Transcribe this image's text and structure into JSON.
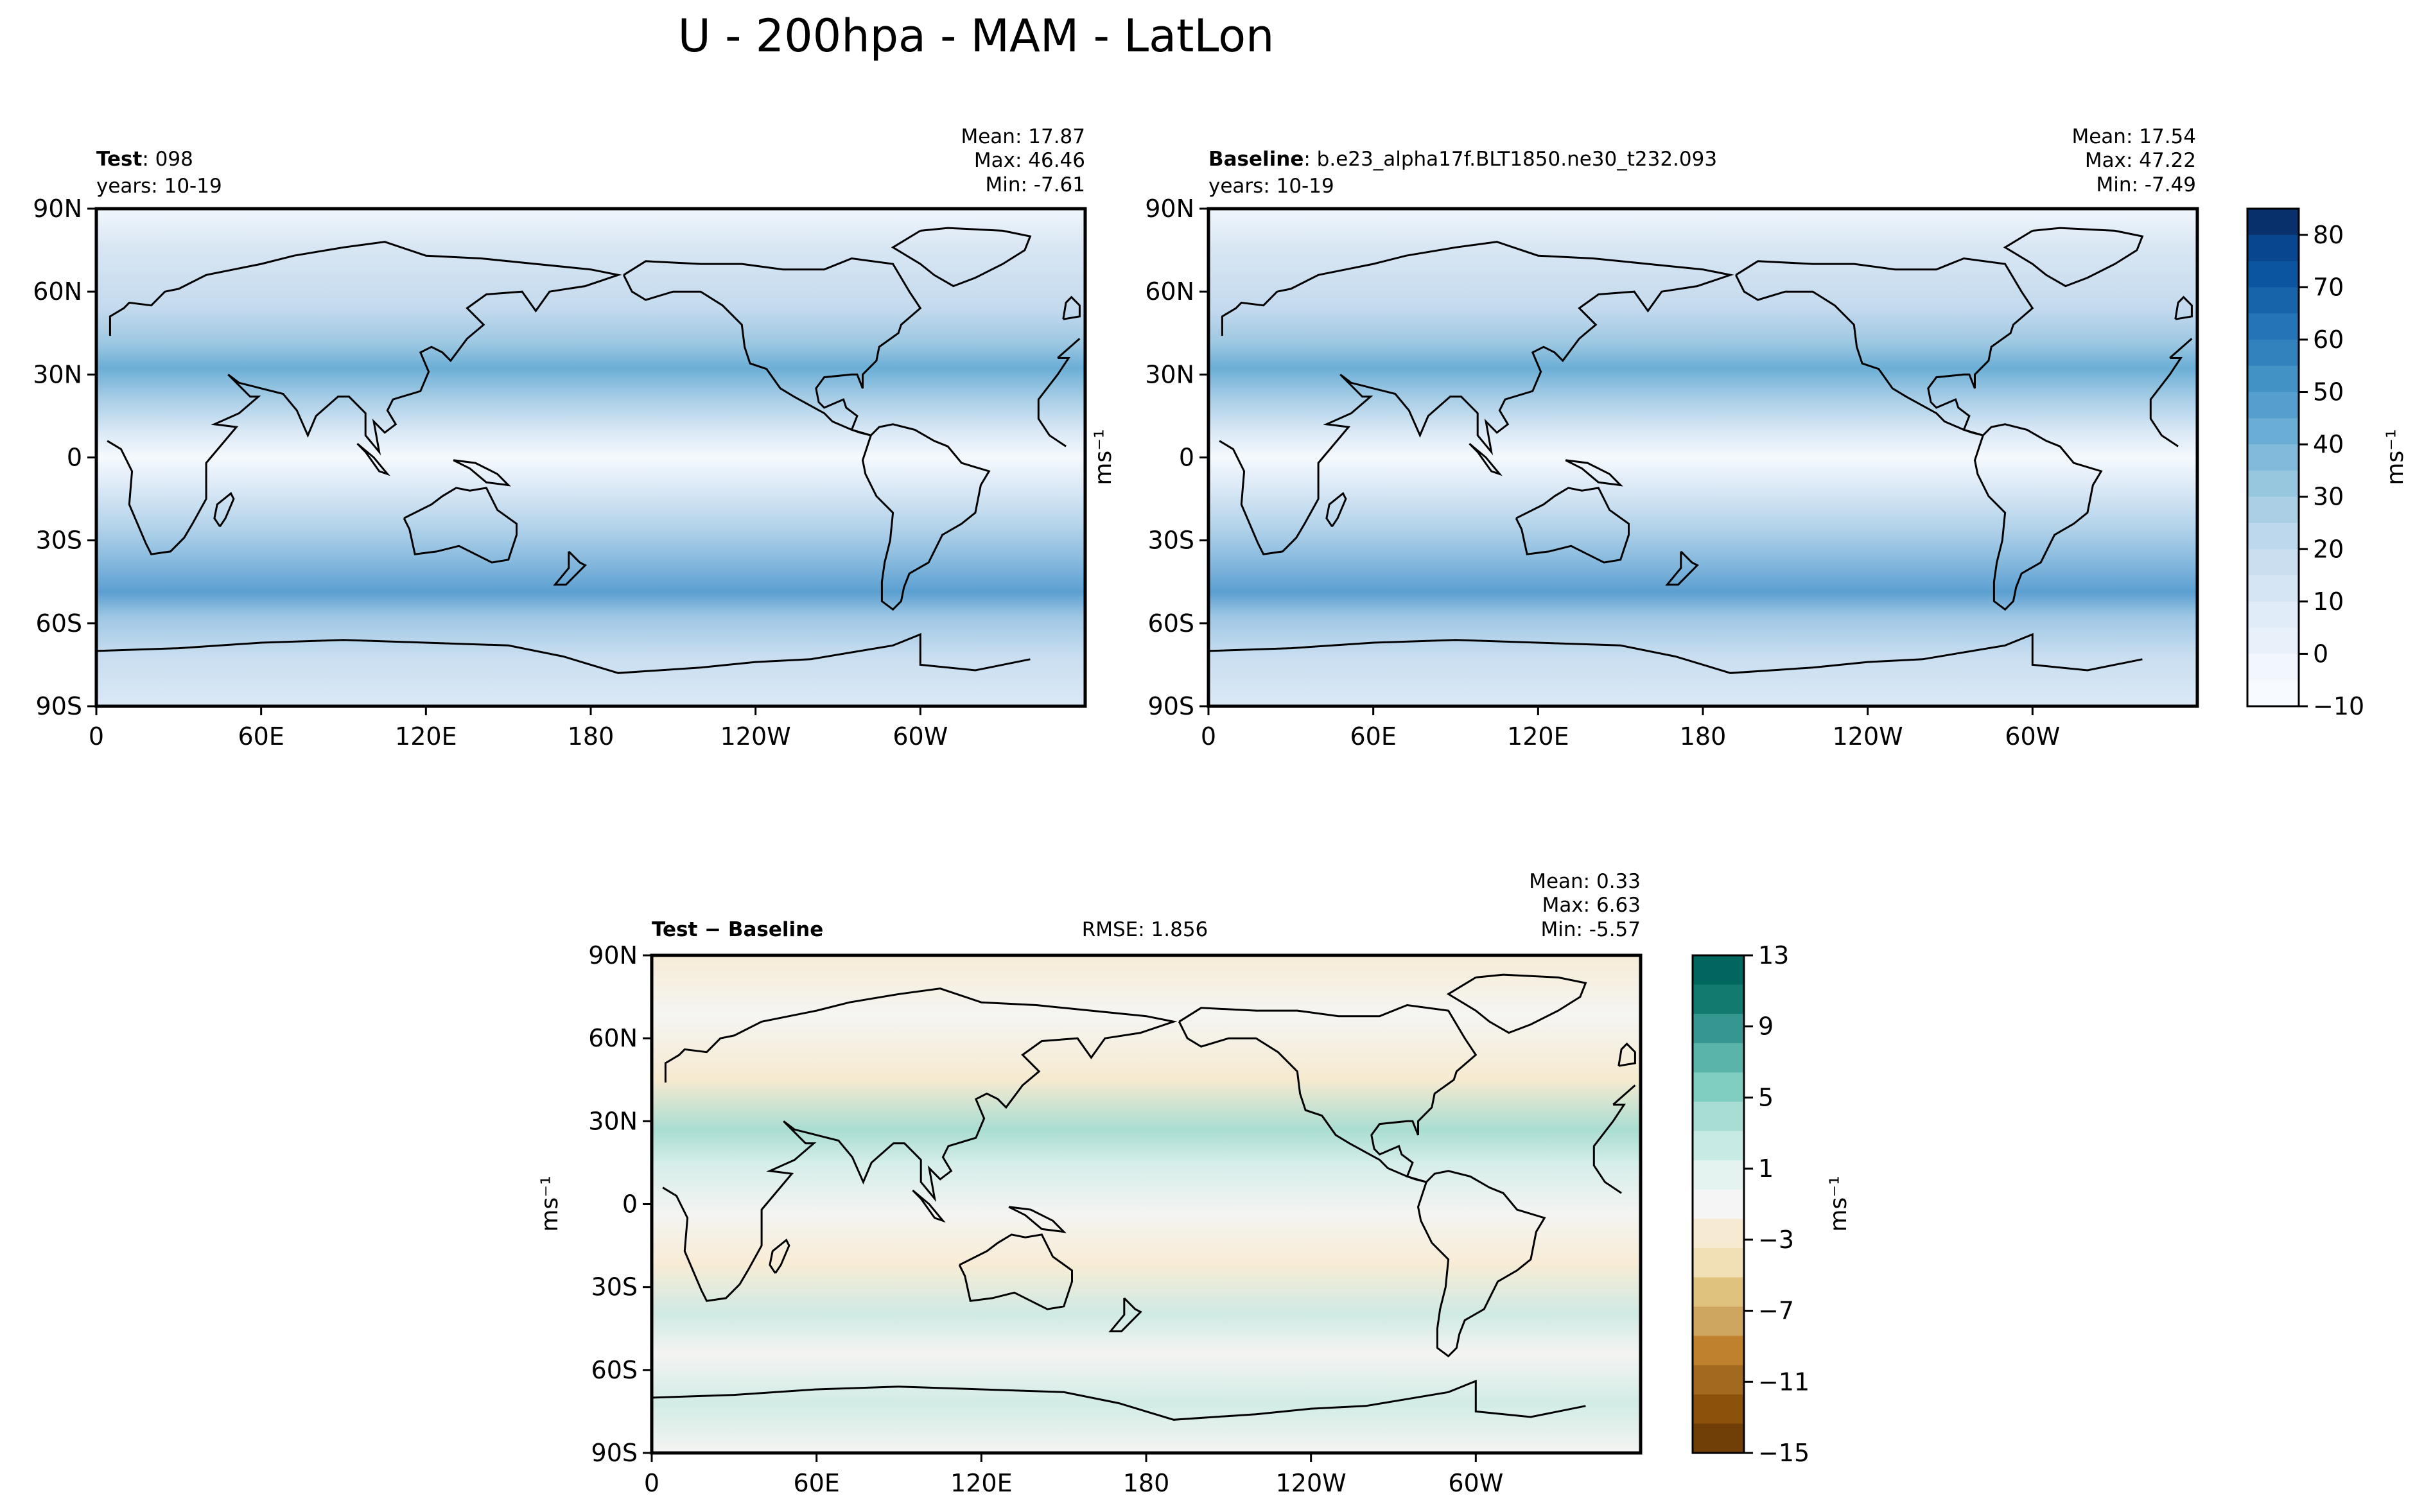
{
  "figure_title": "U - 200hpa - MAM - LatLon",
  "chart_data": [
    {
      "type": "heatmap",
      "panel": "test",
      "label_bold": "Test",
      "label_rest": ": 098",
      "years": "years: 10-19",
      "stats": [
        "Mean: 17.87",
        "Max: 46.46",
        "Min: -7.61"
      ],
      "x_ticks": [
        "0",
        "60E",
        "120E",
        "180",
        "120W",
        "60W"
      ],
      "y_ticks": [
        "90N",
        "60N",
        "30N",
        "0",
        "30S",
        "60S",
        "90S"
      ],
      "xlim": [
        0,
        360
      ],
      "ylim": [
        -90,
        90
      ],
      "units": "ms⁻¹",
      "colormap": "Blues",
      "zonal_mean_profile": {
        "lat": [
          90,
          75,
          60,
          50,
          40,
          30,
          20,
          10,
          0,
          -10,
          -20,
          -30,
          -40,
          -50,
          -60,
          -70,
          -80,
          -90
        ],
        "u": [
          5,
          8,
          14,
          20,
          26,
          32,
          24,
          8,
          -2,
          6,
          18,
          26,
          30,
          34,
          22,
          10,
          4,
          2
        ]
      }
    },
    {
      "type": "heatmap",
      "panel": "baseline",
      "label_bold": "Baseline",
      "label_rest": ": b.e23_alpha17f.BLT1850.ne30_t232.093",
      "years": "years: 10-19",
      "stats": [
        "Mean: 17.54",
        "Max: 47.22",
        "Min: -7.49"
      ],
      "x_ticks": [
        "0",
        "60E",
        "120E",
        "180",
        "120W",
        "60W"
      ],
      "y_ticks": [
        "90N",
        "60N",
        "30N",
        "0",
        "30S",
        "60S",
        "90S"
      ],
      "xlim": [
        0,
        360
      ],
      "ylim": [
        -90,
        90
      ],
      "units": "ms⁻¹",
      "colormap": "Blues",
      "colorbar_ticks": [
        "80",
        "70",
        "60",
        "50",
        "40",
        "30",
        "20",
        "10",
        "0",
        "−10"
      ],
      "colorbar_range": [
        -10,
        85
      ],
      "zonal_mean_profile": {
        "lat": [
          90,
          75,
          60,
          50,
          40,
          30,
          20,
          10,
          0,
          -10,
          -20,
          -30,
          -40,
          -50,
          -60,
          -70,
          -80,
          -90
        ],
        "u": [
          5,
          8,
          14,
          19,
          25,
          31,
          24,
          8,
          -2,
          6,
          18,
          26,
          30,
          33,
          22,
          10,
          4,
          2
        ]
      }
    },
    {
      "type": "heatmap",
      "panel": "difference",
      "label": "Test − Baseline",
      "rmse": "RMSE: 1.856",
      "stats": [
        "Mean:  0.33",
        "Max:  6.63",
        "Min: -5.57"
      ],
      "x_ticks": [
        "0",
        "60E",
        "120E",
        "180",
        "120W",
        "60W"
      ],
      "y_ticks": [
        "90N",
        "60N",
        "30N",
        "0",
        "30S",
        "60S",
        "90S"
      ],
      "xlim": [
        0,
        360
      ],
      "ylim": [
        -90,
        90
      ],
      "units": "ms⁻¹",
      "colormap": "BrBG",
      "colorbar_ticks": [
        "13",
        "9",
        "5",
        "1",
        "−3",
        "−7",
        "−11",
        "−15"
      ],
      "colorbar_range": [
        -15,
        13
      ]
    }
  ]
}
